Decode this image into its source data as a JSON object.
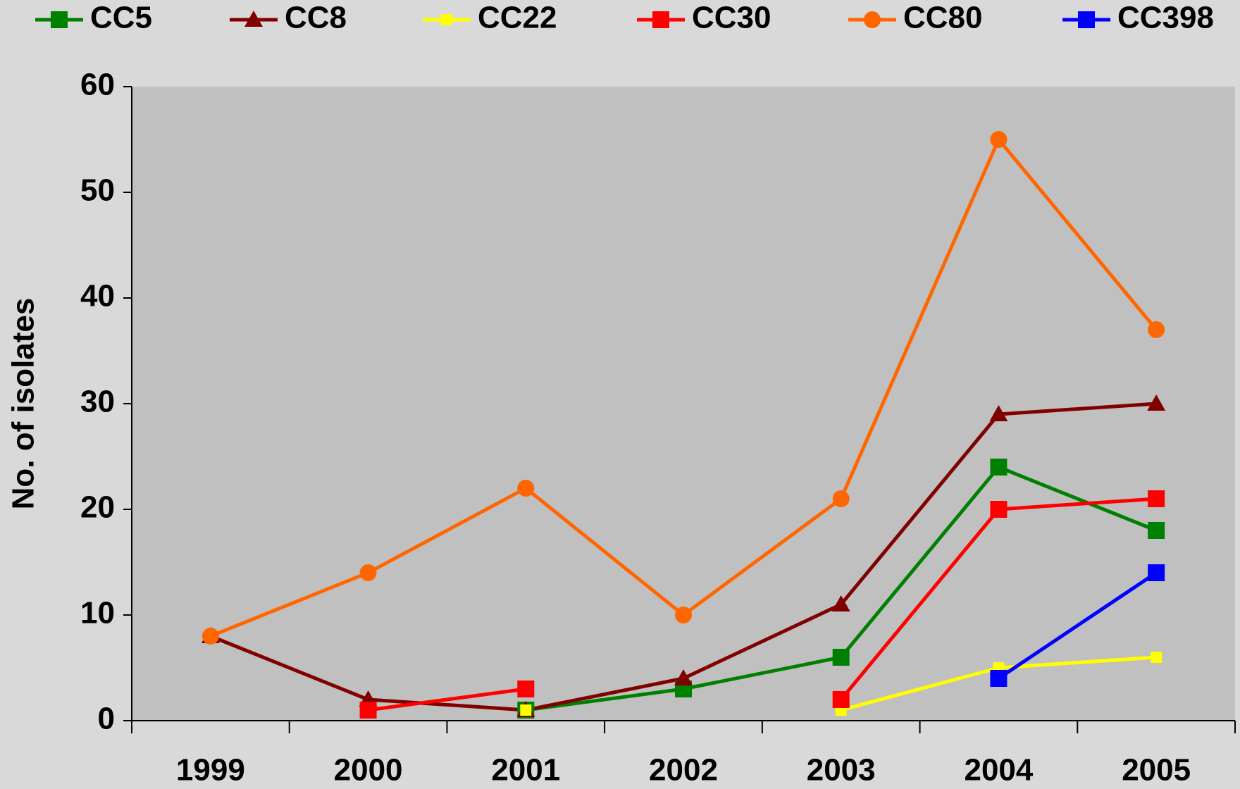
{
  "chart_data": {
    "type": "line",
    "y_label": "No. of isolates",
    "categories": [
      "1999",
      "2000",
      "2001",
      "2002",
      "2003",
      "2004",
      "2005"
    ],
    "series": [
      {
        "name": "CC5",
        "color": "#008000",
        "marker": "square",
        "values": [
          null,
          null,
          1,
          3,
          6,
          24,
          18
        ]
      },
      {
        "name": "CC8",
        "color": "#800000",
        "marker": "triangle",
        "values": [
          8,
          2,
          1,
          4,
          11,
          29,
          30
        ]
      },
      {
        "name": "CC22",
        "color": "#ffff00",
        "marker": "small-square",
        "values": [
          null,
          null,
          1,
          null,
          1,
          5,
          6
        ]
      },
      {
        "name": "CC30",
        "color": "#ff0000",
        "marker": "square",
        "values": [
          null,
          1,
          3,
          null,
          2,
          20,
          21
        ]
      },
      {
        "name": "CC80",
        "color": "#ff6600",
        "marker": "circle",
        "values": [
          8,
          14,
          22,
          10,
          21,
          55,
          37
        ]
      },
      {
        "name": "CC398",
        "color": "#0000ff",
        "marker": "square",
        "values": [
          null,
          null,
          null,
          null,
          null,
          4,
          14
        ]
      }
    ],
    "ylim": [
      0,
      60
    ],
    "yticks": [
      0,
      10,
      20,
      30,
      40,
      50,
      60
    ],
    "legend": "top"
  }
}
